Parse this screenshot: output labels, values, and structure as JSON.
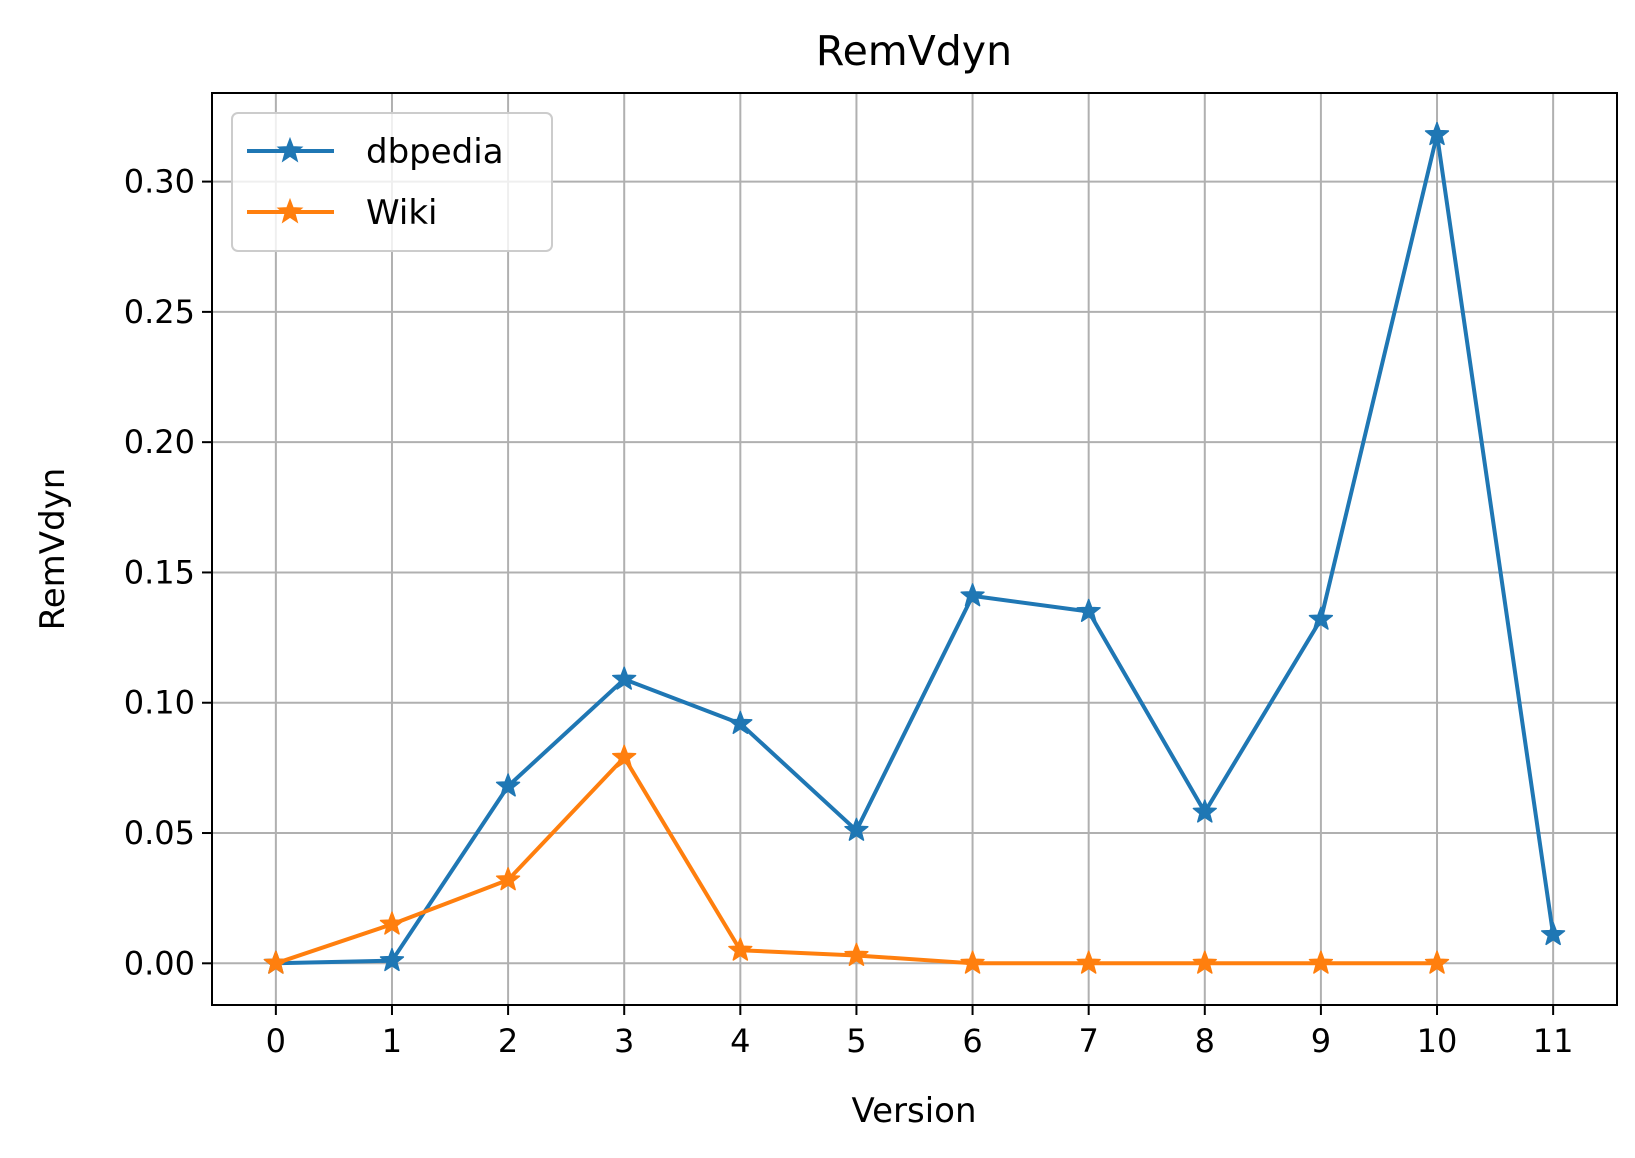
{
  "chart_data": {
    "type": "line",
    "title": "RemVdyn",
    "xlabel": "Version",
    "ylabel": "RemVdyn",
    "x": [
      0,
      1,
      2,
      3,
      4,
      5,
      6,
      7,
      8,
      9,
      10,
      11
    ],
    "xticks": [
      "0",
      "1",
      "2",
      "3",
      "4",
      "5",
      "6",
      "7",
      "8",
      "9",
      "10",
      "11"
    ],
    "yticks": [
      "0.00",
      "0.05",
      "0.10",
      "0.15",
      "0.20",
      "0.25",
      "0.30"
    ],
    "xlim": [
      -0.55,
      11.55
    ],
    "ylim": [
      -0.016,
      0.334
    ],
    "grid": true,
    "legend_position": "top-left",
    "marker": "star",
    "series": [
      {
        "name": "dbpedia",
        "color": "#1f77b4",
        "x": [
          0,
          1,
          2,
          3,
          4,
          5,
          6,
          7,
          8,
          9,
          10,
          11
        ],
        "values": [
          0.0,
          0.001,
          0.068,
          0.109,
          0.092,
          0.051,
          0.141,
          0.135,
          0.058,
          0.132,
          0.318,
          0.011
        ]
      },
      {
        "name": "Wiki",
        "color": "#ff7f0e",
        "x": [
          0,
          1,
          2,
          3,
          4,
          5,
          6,
          7,
          8,
          9,
          10
        ],
        "values": [
          0.0,
          0.015,
          0.032,
          0.079,
          0.005,
          0.003,
          0.0,
          0.0,
          0.0,
          0.0,
          0.0
        ]
      }
    ]
  }
}
